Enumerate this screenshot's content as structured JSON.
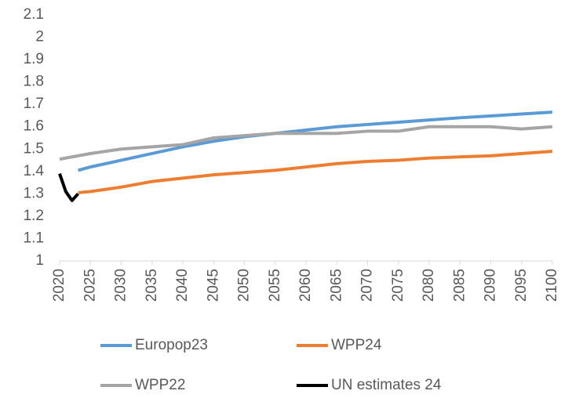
{
  "chart_data": {
    "type": "line",
    "xlim": [
      2020,
      2100
    ],
    "xticks": [
      2020,
      2025,
      2030,
      2035,
      2040,
      2045,
      2050,
      2055,
      2060,
      2065,
      2070,
      2075,
      2080,
      2085,
      2090,
      2095,
      2100
    ],
    "ylim": [
      1,
      2.1
    ],
    "yticks": [
      1,
      1.1,
      1.2,
      1.3,
      1.4,
      1.5,
      1.6,
      1.7,
      1.8,
      1.9,
      2,
      2.1
    ],
    "grid": false,
    "legend": "bottom",
    "series": [
      {
        "name": "Europop23",
        "color": "#5b9bd5",
        "x": [
          2023,
          2025,
          2030,
          2035,
          2040,
          2045,
          2050,
          2055,
          2060,
          2065,
          2070,
          2075,
          2080,
          2085,
          2090,
          2095,
          2100
        ],
        "values": [
          1.405,
          1.42,
          1.45,
          1.48,
          1.51,
          1.535,
          1.555,
          1.57,
          1.585,
          1.6,
          1.61,
          1.62,
          1.63,
          1.64,
          1.648,
          1.657,
          1.665
        ]
      },
      {
        "name": "WPP24",
        "color": "#ed7d31",
        "x": [
          2023,
          2025,
          2030,
          2035,
          2040,
          2045,
          2050,
          2055,
          2060,
          2065,
          2070,
          2075,
          2080,
          2085,
          2090,
          2095,
          2100
        ],
        "values": [
          1.305,
          1.31,
          1.33,
          1.355,
          1.37,
          1.385,
          1.395,
          1.405,
          1.42,
          1.435,
          1.445,
          1.45,
          1.46,
          1.465,
          1.47,
          1.48,
          1.49
        ]
      },
      {
        "name": "WPP22",
        "color": "#a5a5a5",
        "x": [
          2020,
          2025,
          2030,
          2035,
          2040,
          2045,
          2050,
          2055,
          2060,
          2065,
          2070,
          2075,
          2080,
          2085,
          2090,
          2095,
          2100
        ],
        "values": [
          1.455,
          1.48,
          1.5,
          1.51,
          1.52,
          1.55,
          1.56,
          1.57,
          1.57,
          1.57,
          1.58,
          1.58,
          1.6,
          1.6,
          1.6,
          1.59,
          1.6
        ]
      },
      {
        "name": "UN estimates 24",
        "color": "#000000",
        "x": [
          2020,
          2021,
          2022,
          2023
        ],
        "values": [
          1.39,
          1.31,
          1.27,
          1.3
        ]
      }
    ]
  }
}
